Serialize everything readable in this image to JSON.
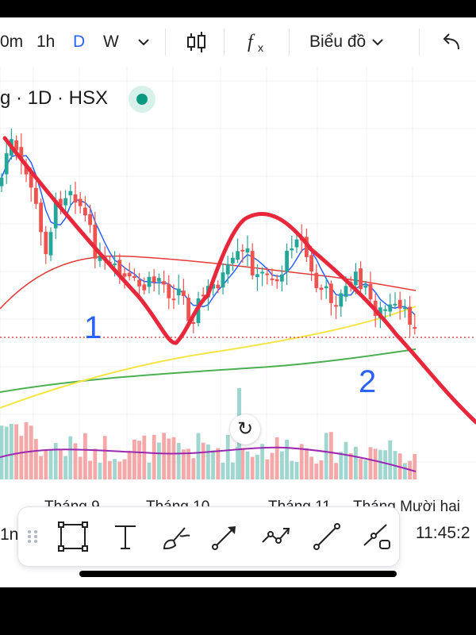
{
  "toolbar": {
    "intervals": [
      "0m",
      "1h",
      "D",
      "W"
    ],
    "active_interval": "D",
    "chart_type_label": "Biểu đồ"
  },
  "chart": {
    "symbol_line": "g · 1D · HSX",
    "annotation_1": "1",
    "annotation_2": "2",
    "x_axis_labels": [
      "Tháng 9",
      "Tháng 10",
      "Tháng 11",
      "Tháng Mười hai"
    ],
    "colors": {
      "up": "#26a69a",
      "down": "#ef5350",
      "trend": "#e8273b",
      "ma_blue": "#2962ff",
      "ma_red": "#e53935",
      "ma_yellow": "#f4e542",
      "ma_green": "#4caf50",
      "volume_ma": "#9c27b0"
    }
  },
  "drawing_tools": {
    "left_label": "1n",
    "time": "11:45:2",
    "tools": [
      "rectangle-icon",
      "text-icon",
      "brush-icon",
      "arrow-icon",
      "path-icon",
      "trendline-icon",
      "ray-icon"
    ]
  }
}
